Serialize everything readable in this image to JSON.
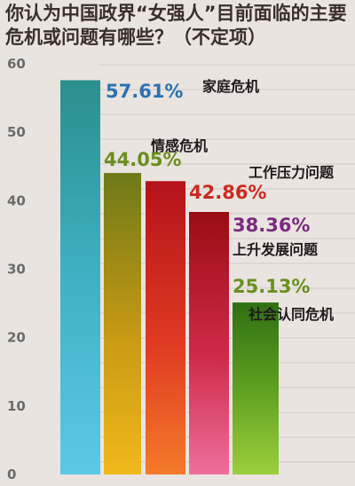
{
  "colors": {
    "background": "#e9e4df",
    "title": "#3a2e2e",
    "pct_blue": "#2a72b5",
    "pct_green": "#6a8f1e",
    "pct_red": "#cc2a1f",
    "pct_purple": "#7a2a80"
  },
  "chart_data": {
    "type": "bar",
    "title": "你认为中国政界“女强人”目前面临的主要危机或问题有哪些？（不定项）",
    "xlabel": "",
    "ylabel": "",
    "ylim": [
      0,
      62
    ],
    "yticks": [
      0,
      10,
      20,
      30,
      40,
      50,
      60
    ],
    "grid": false,
    "legend": "none",
    "categories": [
      "家庭危机",
      "情感危机",
      "工作压力问题",
      "上升发展问题",
      "社会认同危机"
    ],
    "values": [
      57.61,
      44.05,
      42.86,
      38.36,
      25.13
    ],
    "value_labels": [
      "57.61%",
      "44.05%",
      "42.86%",
      "38.36%",
      "25.13%"
    ]
  }
}
